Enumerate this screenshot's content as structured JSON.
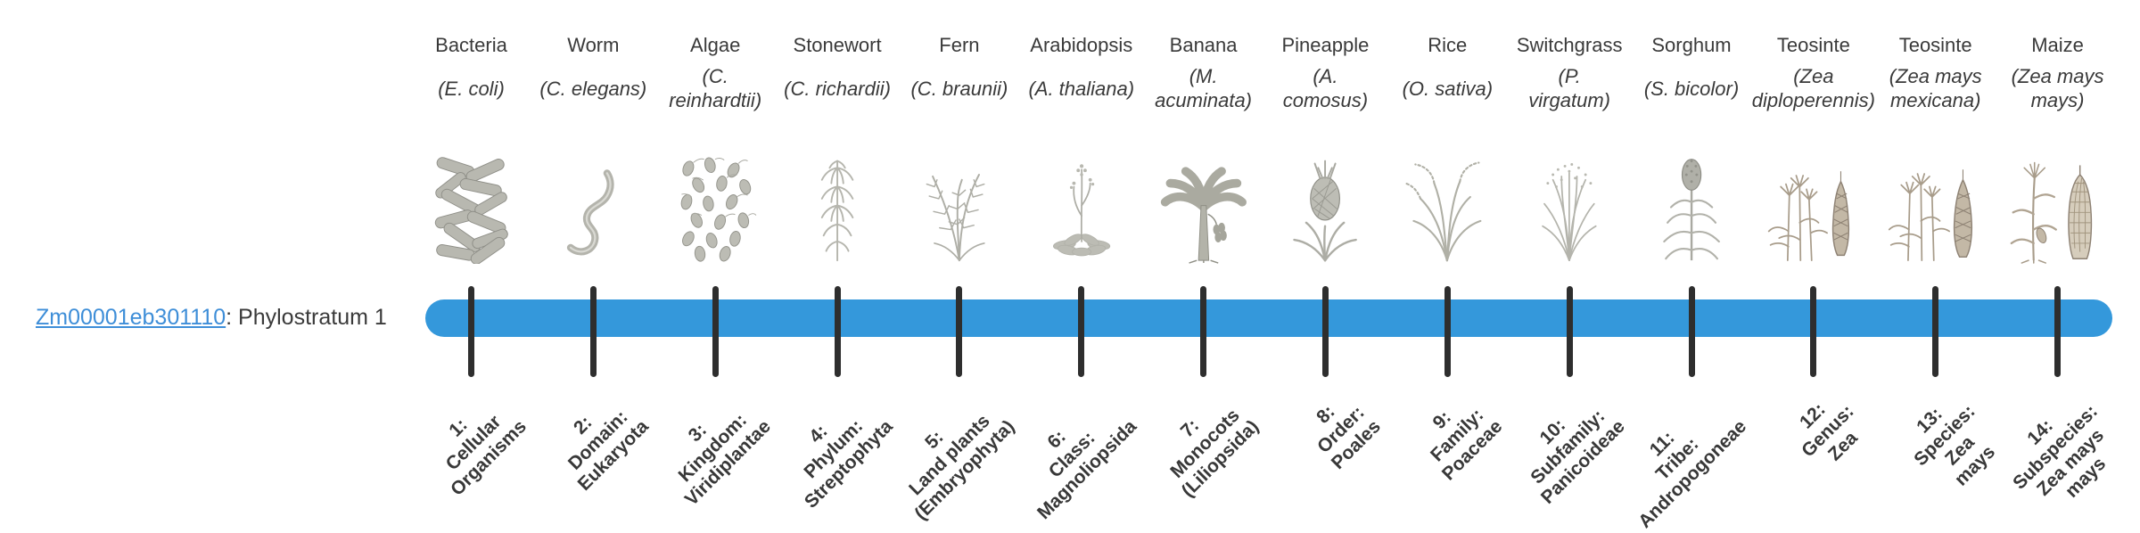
{
  "gene": {
    "id": "Zm00001eb301110",
    "suffix": ": Phylostratum 1",
    "phylostratum": "Phylostratum 1"
  },
  "timeline": {
    "bar_color": "#3498db",
    "tick_color": "#2e2e2e",
    "link_color": "#3e8ed8",
    "num_strata": 14
  },
  "columns": [
    {
      "name": "Bacteria",
      "sci": "(E. coli)",
      "icon": "bacteria-icon",
      "stratum": "1:\nCellular\nOrganisms"
    },
    {
      "name": "Worm",
      "sci": "(C. elegans)",
      "icon": "worm-icon",
      "stratum": "2:\nDomain:\nEukaryota"
    },
    {
      "name": "Algae",
      "sci": "(C.\nreinhardtii)",
      "icon": "algae-icon",
      "stratum": "3:\nKingdom:\nViridiplantae"
    },
    {
      "name": "Stonewort",
      "sci": "(C. richardii)",
      "icon": "stonewort-icon",
      "stratum": "4:\nPhylum:\nStreptophyta"
    },
    {
      "name": "Fern",
      "sci": "(C. braunii)",
      "icon": "fern-icon",
      "stratum": "5:\nLand plants\n(Embryophyta)"
    },
    {
      "name": "Arabidopsis",
      "sci": "(A. thaliana)",
      "icon": "arabidopsis-icon",
      "stratum": "6:\nClass:\nMagnoliopsida"
    },
    {
      "name": "Banana",
      "sci": "(M.\nacuminata)",
      "icon": "banana-icon",
      "stratum": "7:\nMonocots\n(Liliopsida)"
    },
    {
      "name": "Pineapple",
      "sci": "(A.\ncomosus)",
      "icon": "pineapple-icon",
      "stratum": "8:\nOrder:\nPoales"
    },
    {
      "name": "Rice",
      "sci": "(O. sativa)",
      "icon": "rice-icon",
      "stratum": "9:\nFamily:\nPoaceae"
    },
    {
      "name": "Switchgrass",
      "sci": "(P.\nvirgatum)",
      "icon": "switchgrass-icon",
      "stratum": "10:\nSubfamily:\nPanicoideae"
    },
    {
      "name": "Sorghum",
      "sci": "(S. bicolor)",
      "icon": "sorghum-icon",
      "stratum": "11:\nTribe:\nAndropogoneae"
    },
    {
      "name": "Teosinte",
      "sci": "(Zea\ndiploperennis)",
      "icon": "teosinte-diploperennis-icon",
      "stratum": "12:\nGenus:\nZea"
    },
    {
      "name": "Teosinte",
      "sci": "(Zea mays\nmexicana)",
      "icon": "teosinte-mexicana-icon",
      "stratum": "13:\nSpecies:\nZea\nmays"
    },
    {
      "name": "Maize",
      "sci": "(Zea mays\nmays)",
      "icon": "maize-icon",
      "stratum": "14:\nSubspecies:\nZea mays\nmays"
    }
  ]
}
